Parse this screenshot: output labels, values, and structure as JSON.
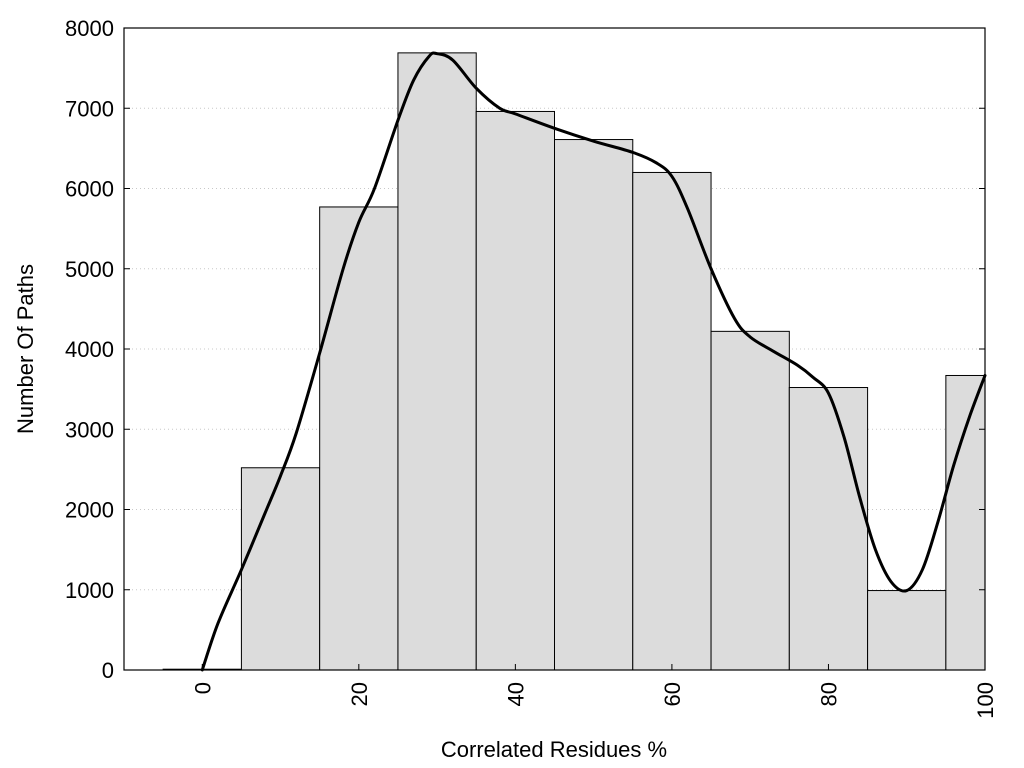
{
  "chart_data": {
    "type": "bar",
    "title": "",
    "xlabel": "Correlated Residues %",
    "ylabel": "Number Of Paths",
    "xlim": [
      -10,
      100
    ],
    "ylim": [
      0,
      8000
    ],
    "x_ticks": [
      0,
      20,
      40,
      60,
      80,
      100
    ],
    "y_ticks": [
      0,
      1000,
      2000,
      3000,
      4000,
      5000,
      6000,
      7000,
      8000
    ],
    "grid": "horizontal-dotted",
    "bar_width": 10,
    "bars": [
      {
        "x": 0,
        "value": 10
      },
      {
        "x": 10,
        "value": 2520
      },
      {
        "x": 20,
        "value": 5770
      },
      {
        "x": 30,
        "value": 7690
      },
      {
        "x": 40,
        "value": 6960
      },
      {
        "x": 50,
        "value": 6610
      },
      {
        "x": 60,
        "value": 6200
      },
      {
        "x": 70,
        "value": 4220
      },
      {
        "x": 80,
        "value": 3520
      },
      {
        "x": 90,
        "value": 990
      },
      {
        "x": 100,
        "value": 3670
      }
    ],
    "curve": {
      "type": "smooth-line",
      "points": [
        [
          0,
          0
        ],
        [
          2,
          580
        ],
        [
          5,
          1250
        ],
        [
          8,
          1950
        ],
        [
          10,
          2420
        ],
        [
          12,
          2950
        ],
        [
          15,
          3950
        ],
        [
          18,
          5000
        ],
        [
          20,
          5580
        ],
        [
          22,
          6000
        ],
        [
          25,
          6850
        ],
        [
          27,
          7350
        ],
        [
          29,
          7650
        ],
        [
          30,
          7680
        ],
        [
          32,
          7600
        ],
        [
          35,
          7250
        ],
        [
          38,
          7000
        ],
        [
          40,
          6930
        ],
        [
          45,
          6750
        ],
        [
          50,
          6590
        ],
        [
          55,
          6450
        ],
        [
          58,
          6320
        ],
        [
          60,
          6150
        ],
        [
          62,
          5750
        ],
        [
          65,
          5000
        ],
        [
          68,
          4380
        ],
        [
          70,
          4150
        ],
        [
          73,
          3970
        ],
        [
          76,
          3800
        ],
        [
          78,
          3650
        ],
        [
          80,
          3450
        ],
        [
          82,
          2900
        ],
        [
          84,
          2150
        ],
        [
          86,
          1500
        ],
        [
          88,
          1100
        ],
        [
          90,
          990
        ],
        [
          92,
          1250
        ],
        [
          94,
          1850
        ],
        [
          96,
          2550
        ],
        [
          98,
          3150
        ],
        [
          100,
          3670
        ]
      ]
    },
    "colors": {
      "bar_fill": "#dcdcdc",
      "bar_stroke": "#000000",
      "curve": "#000000",
      "grid": "#c8c8c8"
    }
  }
}
